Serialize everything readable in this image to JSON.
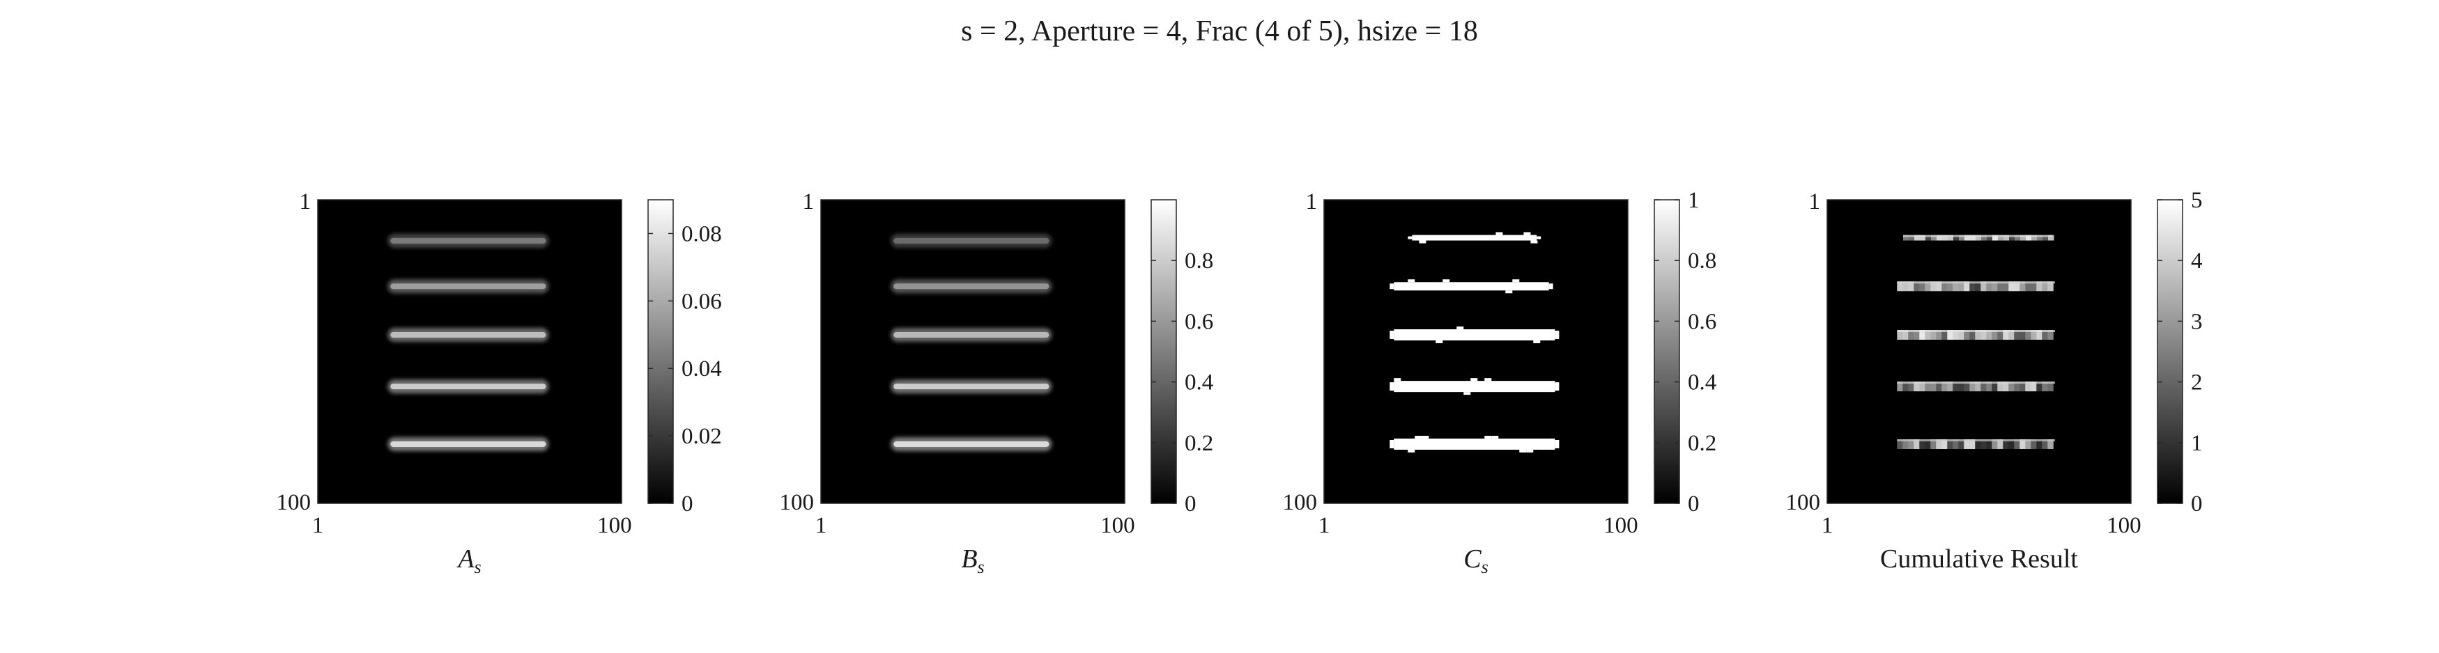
{
  "figure": {
    "title": "s = 2, Aperture = 4, Frac (4 of 5), hsize = 18"
  },
  "colors": {
    "background": "#000000",
    "foreground": "#ffffff",
    "text": "#1a1a1a",
    "colormap": "gray"
  },
  "chart_data": [
    {
      "type": "heatmap",
      "name": "A_s",
      "xlabel_main": "A",
      "xlabel_sub": "s",
      "x_ticks": [
        "1",
        "100"
      ],
      "y_ticks": [
        "1",
        "100"
      ],
      "xlim": [
        1,
        100
      ],
      "ylim": [
        1,
        100
      ],
      "colorbar": {
        "min": 0,
        "max": 0.09,
        "ticks": [
          0,
          0.02,
          0.04,
          0.06,
          0.08
        ],
        "tick_labels": [
          "0",
          "0.02",
          "0.04",
          "0.06",
          "0.08"
        ]
      },
      "style": "soft",
      "bars": [
        {
          "row": 14,
          "x_start": 24,
          "x_end": 76,
          "intensity": 0.48
        },
        {
          "row": 29,
          "x_start": 24,
          "x_end": 76,
          "intensity": 0.62
        },
        {
          "row": 45,
          "x_start": 24,
          "x_end": 76,
          "intensity": 0.74
        },
        {
          "row": 62,
          "x_start": 24,
          "x_end": 76,
          "intensity": 0.8
        },
        {
          "row": 81,
          "x_start": 24,
          "x_end": 76,
          "intensity": 0.85
        }
      ]
    },
    {
      "type": "heatmap",
      "name": "B_s",
      "xlabel_main": "B",
      "xlabel_sub": "s",
      "x_ticks": [
        "1",
        "100"
      ],
      "y_ticks": [
        "1",
        "100"
      ],
      "xlim": [
        1,
        100
      ],
      "ylim": [
        1,
        100
      ],
      "colorbar": {
        "min": 0,
        "max": 1,
        "ticks": [
          0,
          0.2,
          0.4,
          0.6,
          0.8
        ],
        "tick_labels": [
          "0",
          "0.2",
          "0.4",
          "0.6",
          "0.8"
        ]
      },
      "style": "soft",
      "bars": [
        {
          "row": 14,
          "x_start": 24,
          "x_end": 76,
          "intensity": 0.42
        },
        {
          "row": 29,
          "x_start": 24,
          "x_end": 76,
          "intensity": 0.58
        },
        {
          "row": 45,
          "x_start": 24,
          "x_end": 76,
          "intensity": 0.72
        },
        {
          "row": 62,
          "x_start": 24,
          "x_end": 76,
          "intensity": 0.8
        },
        {
          "row": 81,
          "x_start": 24,
          "x_end": 76,
          "intensity": 0.86
        }
      ]
    },
    {
      "type": "heatmap",
      "name": "C_s",
      "xlabel_main": "C",
      "xlabel_sub": "s",
      "x_ticks": [
        "1",
        "100"
      ],
      "y_ticks": [
        "1",
        "100"
      ],
      "xlim": [
        1,
        100
      ],
      "ylim": [
        1,
        100
      ],
      "colorbar": {
        "min": 0,
        "max": 1,
        "ticks": [
          0,
          0.2,
          0.4,
          0.6,
          0.8,
          1
        ],
        "tick_labels": [
          "0",
          "0.2",
          "0.4",
          "0.6",
          "0.8",
          "1"
        ]
      },
      "style": "binary",
      "bars": [
        {
          "row": 13,
          "x_start": 30,
          "x_end": 70,
          "intensity": 1.0
        },
        {
          "row": 29,
          "x_start": 24,
          "x_end": 74,
          "intensity": 1.0
        },
        {
          "row": 45,
          "x_start": 24,
          "x_end": 76,
          "intensity": 1.0
        },
        {
          "row": 62,
          "x_start": 24,
          "x_end": 76,
          "intensity": 1.0
        },
        {
          "row": 81,
          "x_start": 24,
          "x_end": 76,
          "intensity": 1.0
        }
      ]
    },
    {
      "type": "heatmap",
      "name": "Cumulative Result",
      "xlabel_main": "Cumulative Result",
      "xlabel_sub": "",
      "x_ticks": [
        "1",
        "100"
      ],
      "y_ticks": [
        "1",
        "100"
      ],
      "xlim": [
        1,
        100
      ],
      "ylim": [
        1,
        100
      ],
      "colorbar": {
        "min": 0,
        "max": 5,
        "ticks": [
          0,
          1,
          2,
          3,
          4,
          5
        ],
        "tick_labels": [
          "0",
          "1",
          "2",
          "3",
          "4",
          "5"
        ]
      },
      "style": "mottled",
      "bars": [
        {
          "row": 13,
          "x_start": 26,
          "x_end": 74,
          "intensity": 0.78
        },
        {
          "row": 29,
          "x_start": 24,
          "x_end": 75,
          "intensity": 0.74
        },
        {
          "row": 45,
          "x_start": 24,
          "x_end": 75,
          "intensity": 0.8
        },
        {
          "row": 62,
          "x_start": 24,
          "x_end": 75,
          "intensity": 0.76
        },
        {
          "row": 81,
          "x_start": 24,
          "x_end": 75,
          "intensity": 0.7
        }
      ]
    }
  ]
}
